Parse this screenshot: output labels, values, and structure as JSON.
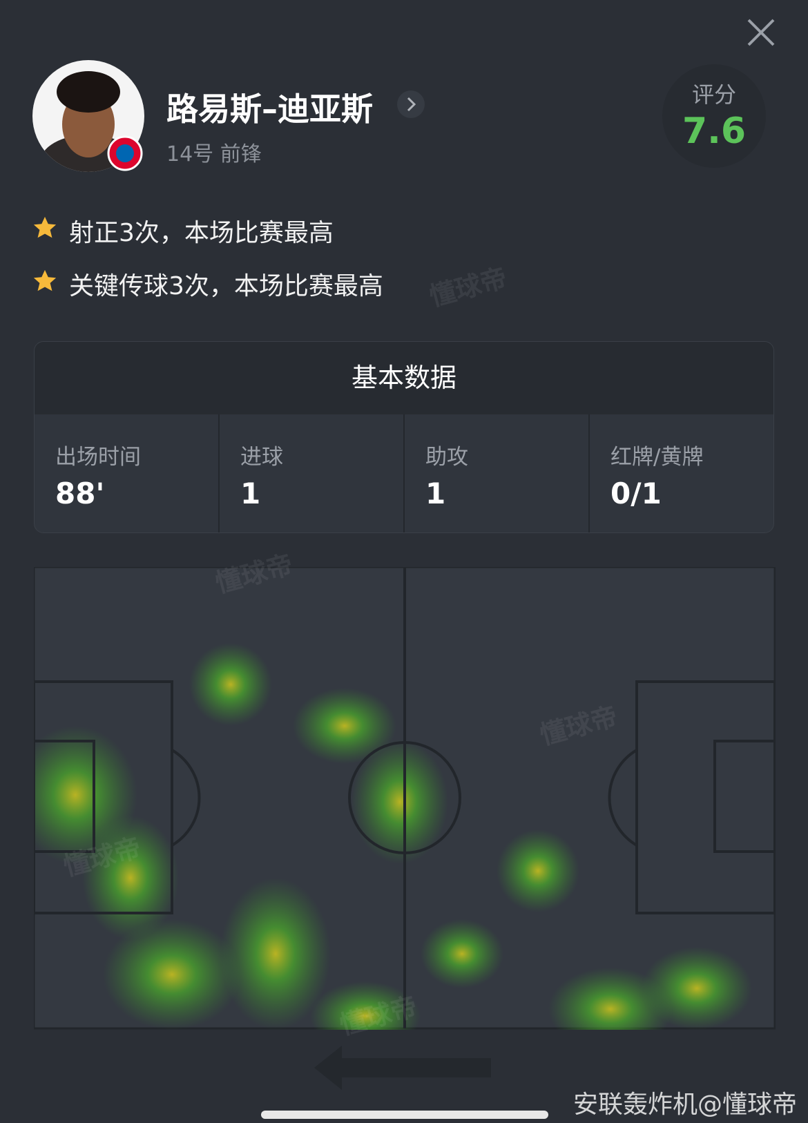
{
  "player": {
    "name": "路易斯–迪亚斯",
    "info": "14号 前锋",
    "rating_label": "评分",
    "rating": "7.6"
  },
  "highlights": [
    "射正3次，本场比赛最高",
    "关键传球3次，本场比赛最高"
  ],
  "stats": {
    "title": "基本数据",
    "items": [
      {
        "label": "出场时间",
        "value": "88'"
      },
      {
        "label": "进球",
        "value": "1"
      },
      {
        "label": "助攻",
        "value": "1"
      },
      {
        "label": "红牌/黄牌",
        "value": "0/1"
      }
    ]
  },
  "logo_watermark": "懂球帝",
  "watermark": "安联轰炸机@懂球帝"
}
